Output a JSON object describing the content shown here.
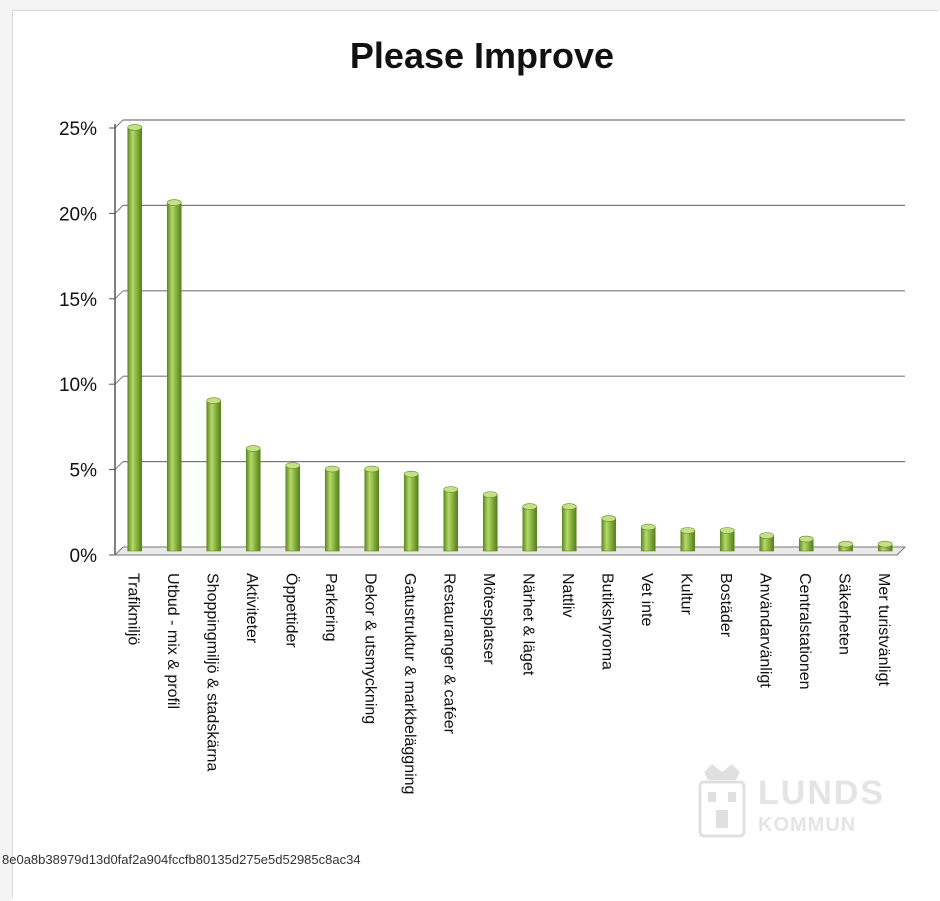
{
  "chart_data": {
    "type": "bar",
    "title": "Please Improve",
    "categories": [
      "Trafikmiljö",
      "Utbud - mix & profil",
      "Shoppingmiljö & stadskärna",
      "Aktiviteter",
      "Öppettider",
      "Parkering",
      "Dekor & utsmyckning",
      "Gatustruktur & markbeläggning",
      "Restauranger & caféer",
      "Mötesplatser",
      "Närhet & läget",
      "Nattliv",
      "Butikshyroma",
      "Vet inte",
      "Kultur",
      "Bostäder",
      "Användarvänligt",
      "Centralstationen",
      "Säkerheten",
      "Mer turistvänligt"
    ],
    "values": [
      24.8,
      20.4,
      8.8,
      6.0,
      5.0,
      4.8,
      4.8,
      4.5,
      3.6,
      3.3,
      2.6,
      2.6,
      1.9,
      1.4,
      1.2,
      1.2,
      0.9,
      0.7,
      0.4,
      0.4
    ],
    "yticks": [
      "0%",
      "5%",
      "10%",
      "15%",
      "20%",
      "25%"
    ],
    "ylim": [
      0,
      25
    ],
    "grid": true,
    "bar_color": "#8db843",
    "bar_color_dark": "#5f8a22",
    "bar_color_light": "#c6e08a"
  },
  "watermark": {
    "hash": "8e0a8b38979d13d0faf2a904fccfb80135d275e5d52985c8ac34",
    "logo_line1": "LUNDS",
    "logo_line2": "KOMMUN"
  }
}
